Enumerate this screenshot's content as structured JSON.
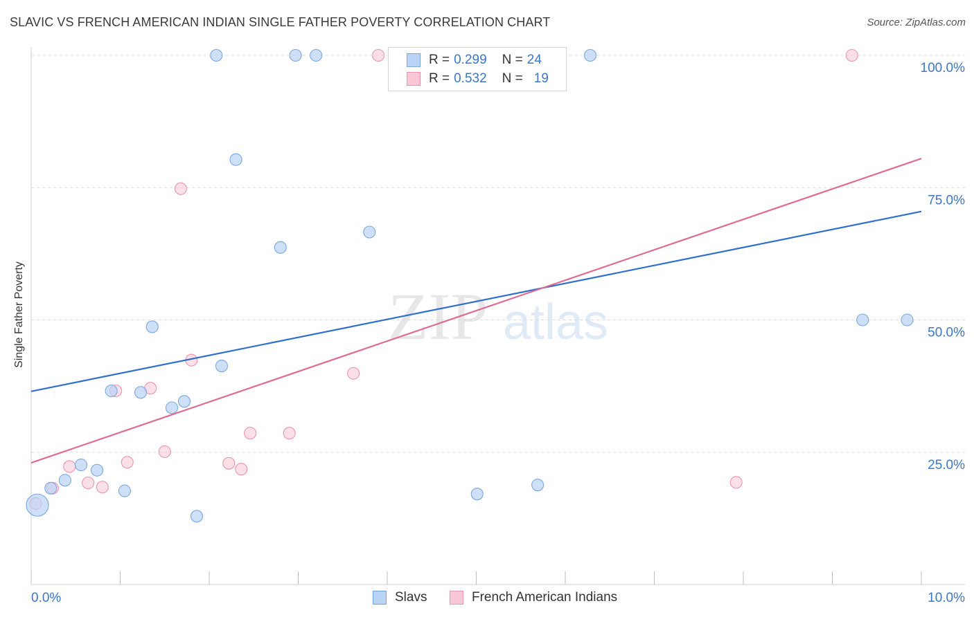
{
  "header": {
    "title": "SLAVIC VS FRENCH AMERICAN INDIAN SINGLE FATHER POVERTY CORRELATION CHART",
    "source": "Source: ZipAtlas.com"
  },
  "watermark": {
    "zip": "ZIP",
    "atlas": "atlas"
  },
  "legend": {
    "rows": [
      {
        "r_label": "R =",
        "r_value": "0.299",
        "n_label": "N =",
        "n_value": "24"
      },
      {
        "r_label": "R =",
        "r_value": "0.532",
        "n_label": "N =",
        "n_value": "19"
      }
    ]
  },
  "bottom_legend": {
    "slavs": "Slavs",
    "french": "French American Indians"
  },
  "colors": {
    "slavs_fill": "#b9d3f5",
    "slavs_stroke": "#7aa6e0",
    "slavs_line": "#2f6fcb",
    "french_fill": "#f9c6d6",
    "french_stroke": "#ec93ae",
    "french_line": "#e06b91",
    "axis_text": "#3a76c9",
    "grid": "#dcdcdc"
  },
  "chart_data": {
    "type": "scatter",
    "title": "SLAVIC VS FRENCH AMERICAN INDIAN SINGLE FATHER POVERTY CORRELATION CHART",
    "xlabel": "",
    "ylabel": "Single Father Poverty",
    "xlim": [
      0,
      10
    ],
    "ylim": [
      0,
      100
    ],
    "x_tick_labels": [
      "0.0%",
      "10.0%"
    ],
    "y_ticks": [
      25,
      50,
      75,
      100
    ],
    "y_tick_labels": [
      "25.0%",
      "50.0%",
      "75.0%",
      "100.0%"
    ],
    "grid": "horizontal dashed",
    "series": [
      {
        "name": "Slavs",
        "r": 0.299,
        "n": 24,
        "trend": {
          "x": [
            0,
            10
          ],
          "y": [
            36.5,
            70.5
          ]
        },
        "points": [
          {
            "x": 0.07,
            "y": 15.0,
            "big": true
          },
          {
            "x": 0.22,
            "y": 18.2
          },
          {
            "x": 0.38,
            "y": 19.7
          },
          {
            "x": 0.56,
            "y": 22.6
          },
          {
            "x": 0.74,
            "y": 21.6
          },
          {
            "x": 0.9,
            "y": 36.6
          },
          {
            "x": 1.05,
            "y": 17.7
          },
          {
            "x": 1.23,
            "y": 36.3
          },
          {
            "x": 1.36,
            "y": 48.7
          },
          {
            "x": 1.58,
            "y": 33.4
          },
          {
            "x": 1.72,
            "y": 34.6
          },
          {
            "x": 1.86,
            "y": 12.9
          },
          {
            "x": 2.08,
            "y": 100.0
          },
          {
            "x": 2.14,
            "y": 41.3
          },
          {
            "x": 2.3,
            "y": 80.3
          },
          {
            "x": 2.8,
            "y": 63.7
          },
          {
            "x": 2.97,
            "y": 100.0
          },
          {
            "x": 3.2,
            "y": 100.0
          },
          {
            "x": 3.8,
            "y": 66.6
          },
          {
            "x": 5.01,
            "y": 17.1
          },
          {
            "x": 5.69,
            "y": 18.8
          },
          {
            "x": 6.28,
            "y": 100.0
          },
          {
            "x": 9.34,
            "y": 50.0
          },
          {
            "x": 9.84,
            "y": 50.0
          }
        ]
      },
      {
        "name": "French American Indians",
        "r": 0.532,
        "n": 19,
        "trend": {
          "x": [
            0,
            10
          ],
          "y": [
            23.0,
            80.5
          ]
        },
        "points": [
          {
            "x": 0.05,
            "y": 15.3
          },
          {
            "x": 0.24,
            "y": 18.2
          },
          {
            "x": 0.43,
            "y": 22.3
          },
          {
            "x": 0.64,
            "y": 19.2
          },
          {
            "x": 0.8,
            "y": 18.4
          },
          {
            "x": 0.95,
            "y": 36.6
          },
          {
            "x": 1.08,
            "y": 23.1
          },
          {
            "x": 1.34,
            "y": 37.1
          },
          {
            "x": 1.5,
            "y": 25.1
          },
          {
            "x": 1.68,
            "y": 74.8
          },
          {
            "x": 1.8,
            "y": 42.4
          },
          {
            "x": 2.22,
            "y": 22.9
          },
          {
            "x": 2.36,
            "y": 21.8
          },
          {
            "x": 2.46,
            "y": 28.6
          },
          {
            "x": 2.9,
            "y": 28.6
          },
          {
            "x": 3.62,
            "y": 39.9
          },
          {
            "x": 3.9,
            "y": 100.0
          },
          {
            "x": 7.92,
            "y": 19.3
          },
          {
            "x": 9.22,
            "y": 100.0
          }
        ]
      }
    ]
  }
}
